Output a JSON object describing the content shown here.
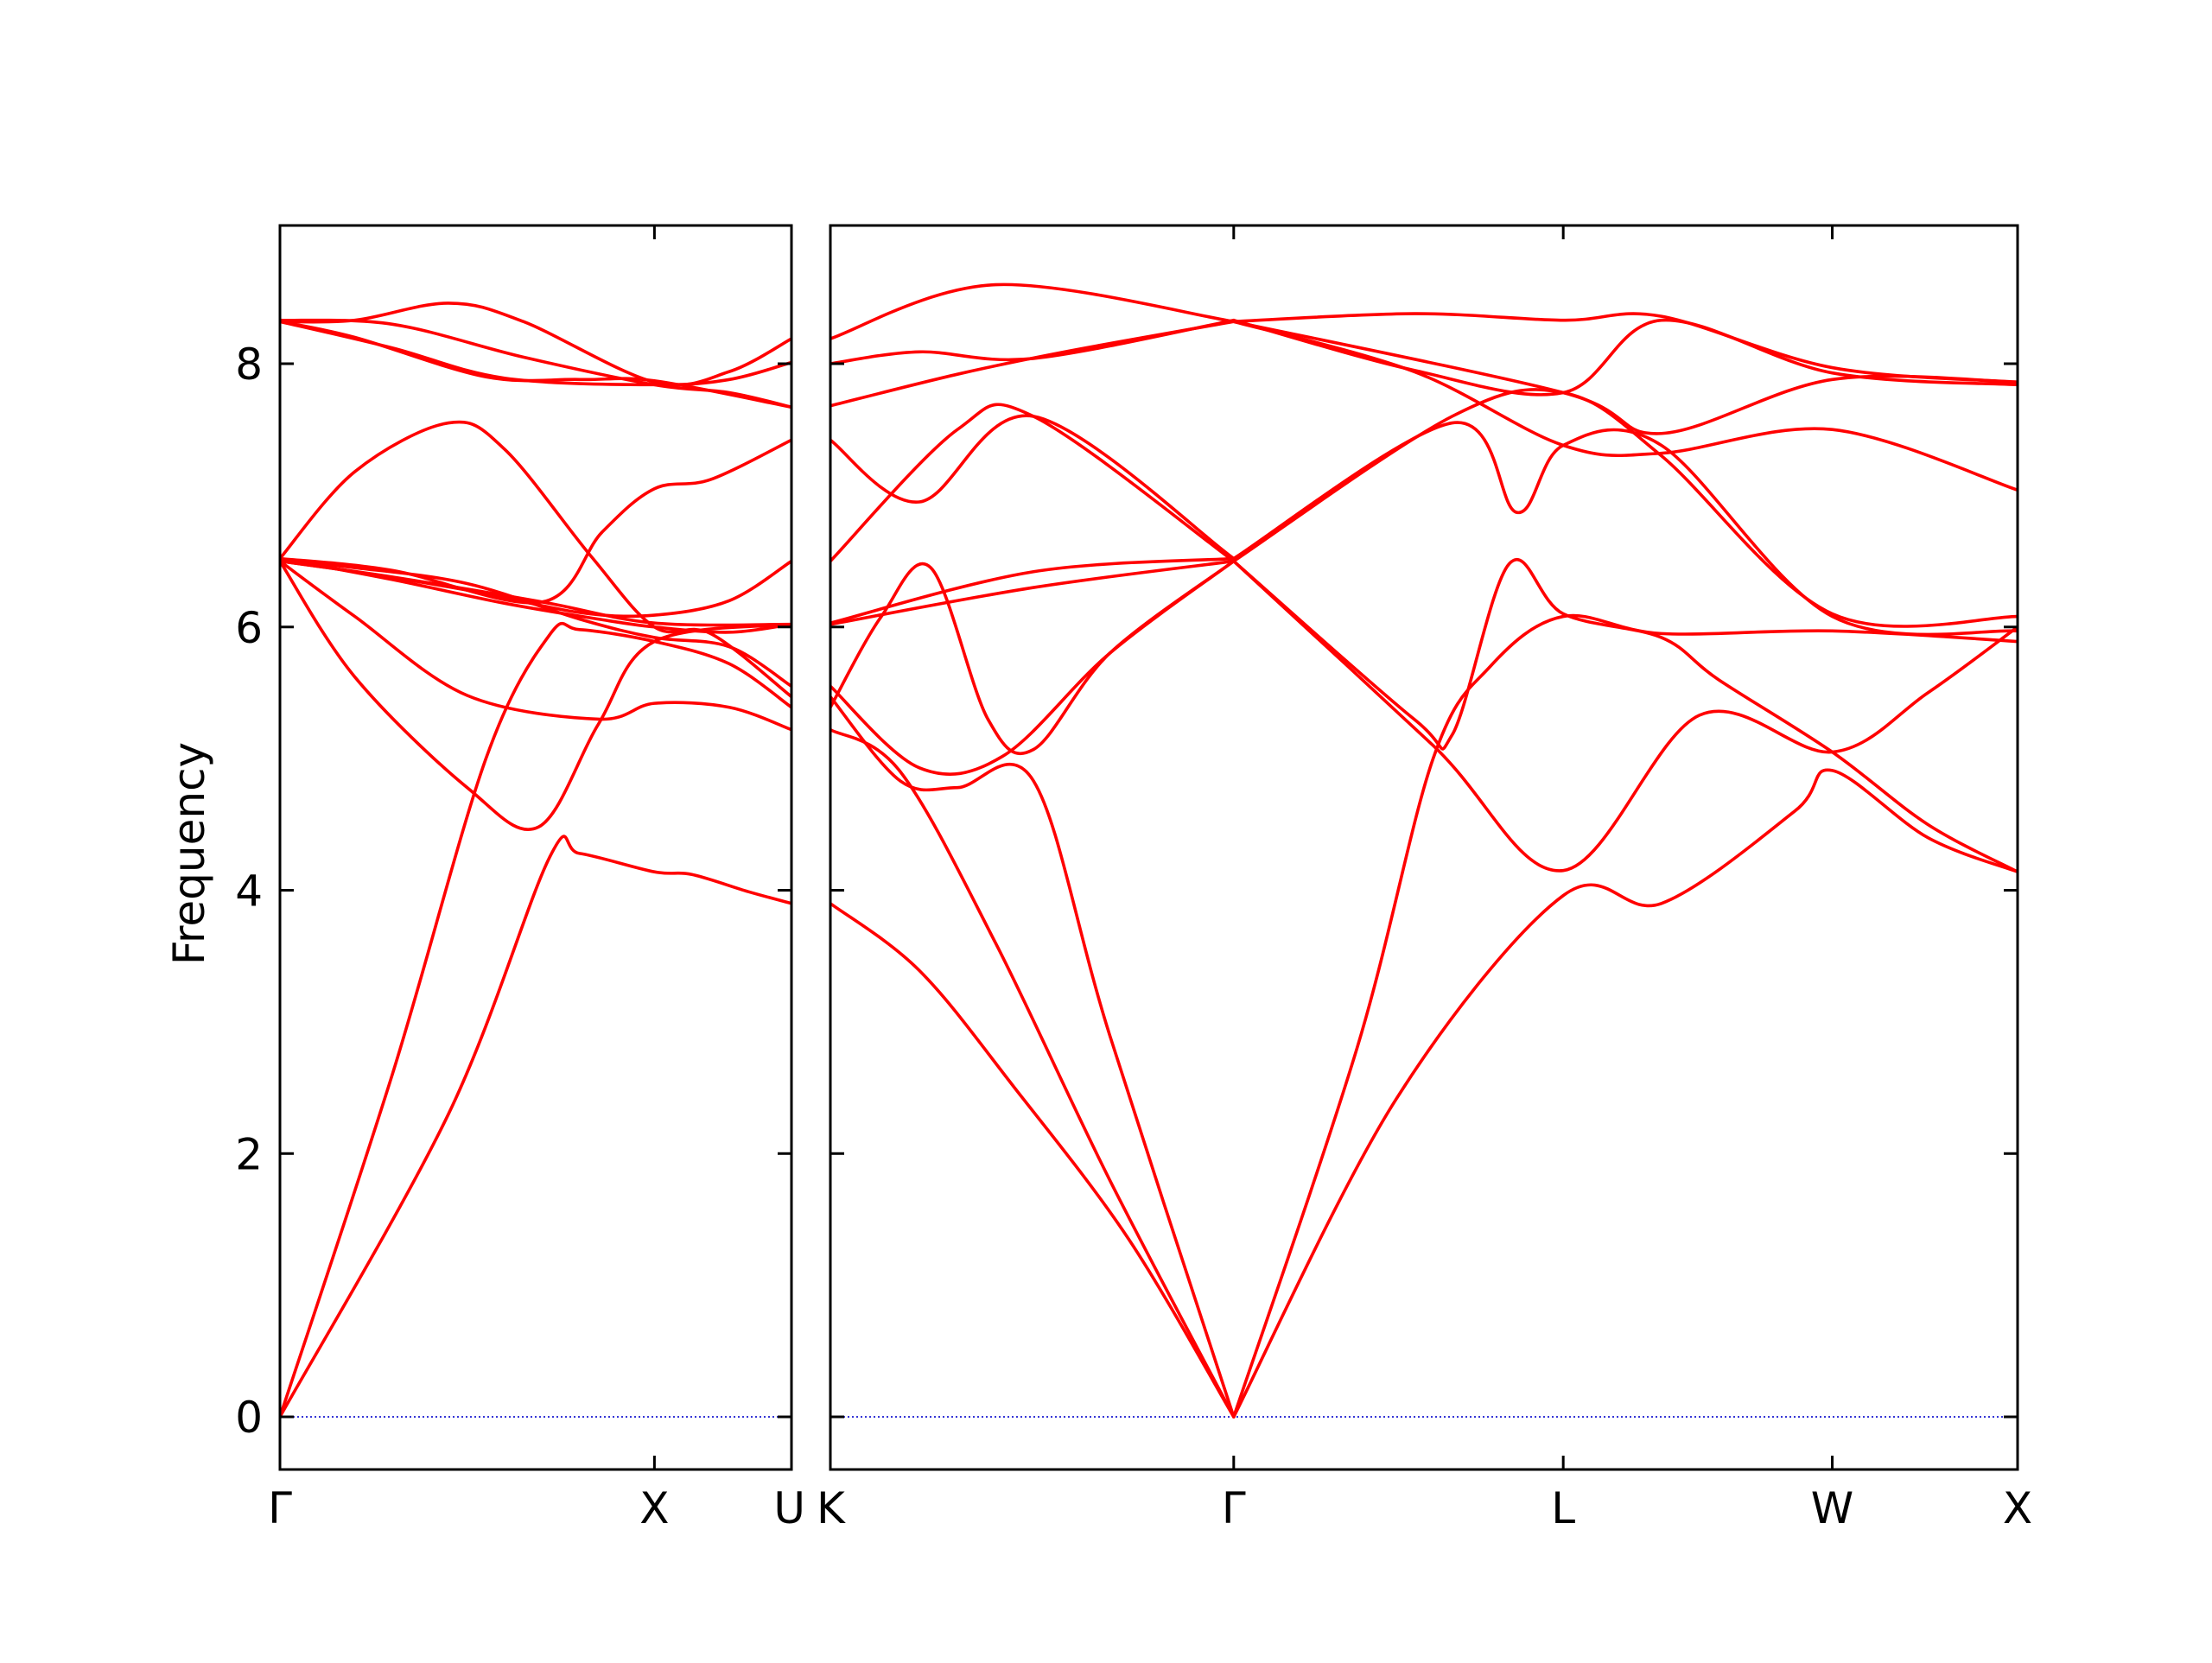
{
  "chart_data": {
    "type": "line",
    "ylabel": "Frequency",
    "ylim": [
      -0.4,
      9.05
    ],
    "yticks": [
      0,
      2,
      4,
      6,
      8
    ],
    "grid": false,
    "legend": "none",
    "colors": {
      "band": "#ff0000",
      "zero_line": "#0000cc",
      "axis": "#000000"
    },
    "panels": [
      {
        "xlim": [
          0,
          1.366
        ],
        "xticks": [
          {
            "x": 0,
            "label": "Γ"
          },
          {
            "x": 1.0,
            "label": "X"
          },
          {
            "x": 1.366,
            "label": "U"
          }
        ],
        "series": [
          {
            "values": [
              [
                0,
                0
              ],
              [
                0.45,
                2.3
              ],
              [
                0.72,
                4.25
              ],
              [
                0.8,
                4.28
              ],
              [
                1.0,
                4.14
              ],
              [
                1.1,
                4.12
              ],
              [
                1.25,
                3.99
              ],
              [
                1.366,
                3.9
              ]
            ]
          },
          {
            "values": [
              [
                0,
                0
              ],
              [
                0.3,
                2.6
              ],
              [
                0.55,
                5.0
              ],
              [
                0.72,
                5.94
              ],
              [
                0.8,
                5.98
              ],
              [
                1.0,
                5.89
              ],
              [
                1.2,
                5.72
              ],
              [
                1.366,
                5.39
              ]
            ]
          },
          {
            "values": [
              [
                0,
                6.5
              ],
              [
                0.2,
                5.62
              ],
              [
                0.5,
                4.78
              ],
              [
                0.69,
                4.48
              ],
              [
                0.85,
                5.26
              ],
              [
                1.0,
                5.89
              ],
              [
                1.366,
                6.02
              ]
            ]
          },
          {
            "values": [
              [
                0,
                6.5
              ],
              [
                0.3,
                6.38
              ],
              [
                0.7,
                6.19
              ],
              [
                1.0,
                6.03
              ],
              [
                1.366,
                6.02
              ]
            ]
          },
          {
            "values": [
              [
                0,
                6.52
              ],
              [
                0.3,
                6.43
              ],
              [
                0.7,
                6.19
              ],
              [
                0.86,
                6.72
              ],
              [
                1.0,
                7.05
              ],
              [
                1.15,
                7.12
              ],
              [
                1.366,
                7.42
              ]
            ]
          },
          {
            "values": [
              [
                0,
                6.52
              ],
              [
                0.2,
                7.18
              ],
              [
                0.45,
                7.55
              ],
              [
                0.6,
                7.35
              ],
              [
                0.83,
                6.54
              ],
              [
                1.0,
                6.0
              ],
              [
                1.15,
                5.95
              ],
              [
                1.366,
                5.47
              ]
            ]
          },
          {
            "values": [
              [
                0,
                8.32
              ],
              [
                0.2,
                8.33
              ],
              [
                0.45,
                8.46
              ],
              [
                0.65,
                8.32
              ],
              [
                1.0,
                7.86
              ],
              [
                1.2,
                7.94
              ],
              [
                1.366,
                8.19
              ]
            ]
          },
          {
            "values": [
              [
                0,
                8.32
              ],
              [
                0.2,
                8.2
              ],
              [
                0.55,
                7.9
              ],
              [
                0.8,
                7.88
              ],
              [
                1.0,
                7.87
              ],
              [
                1.366,
                7.67
              ]
            ]
          },
          {
            "values": [
              [
                0,
                6.5
              ],
              [
                0.2,
                6.42
              ],
              [
                0.5,
                6.28
              ],
              [
                0.8,
                6.11
              ],
              [
                1.0,
                6.09
              ],
              [
                1.2,
                6.2
              ],
              [
                1.366,
                6.5
              ]
            ]
          },
          {
            "values": [
              [
                0,
                6.5
              ],
              [
                0.2,
                6.45
              ],
              [
                0.5,
                6.33
              ],
              [
                0.8,
                6.06
              ],
              [
                1.0,
                5.92
              ],
              [
                1.2,
                5.85
              ],
              [
                1.366,
                5.55
              ]
            ]
          },
          {
            "values": [
              [
                0,
                6.52
              ],
              [
                0.3,
                6.36
              ],
              [
                0.6,
                6.18
              ],
              [
                0.85,
                6.06
              ],
              [
                1.0,
                6.0
              ],
              [
                1.2,
                5.96
              ],
              [
                1.366,
                6.02
              ]
            ]
          },
          {
            "values": [
              [
                0,
                8.32
              ],
              [
                0.3,
                8.12
              ],
              [
                0.6,
                7.89
              ],
              [
                1.0,
                7.84
              ],
              [
                1.2,
                7.88
              ],
              [
                1.366,
                8.01
              ]
            ]
          },
          {
            "values": [
              [
                0,
                8.33
              ],
              [
                0.3,
                8.3
              ],
              [
                0.65,
                8.05
              ],
              [
                1.0,
                7.84
              ],
              [
                1.2,
                7.78
              ],
              [
                1.366,
                7.67
              ]
            ]
          },
          {
            "values": [
              [
                0,
                6.5
              ],
              [
                0.2,
                6.08
              ],
              [
                0.5,
                5.48
              ],
              [
                0.85,
                5.3
              ],
              [
                1.0,
                5.42
              ],
              [
                1.2,
                5.39
              ],
              [
                1.366,
                5.22
              ]
            ]
          }
        ]
      },
      {
        "xlim": [
          1.366,
          4.486
        ],
        "xticks": [
          {
            "x": 1.366,
            "label": "K"
          },
          {
            "x": 2.426,
            "label": "Γ"
          },
          {
            "x": 3.292,
            "label": "L"
          },
          {
            "x": 3.999,
            "label": "W"
          },
          {
            "x": 4.486,
            "label": "X"
          }
        ],
        "series": [
          {
            "values": [
              [
                1.366,
                3.9
              ],
              [
                1.6,
                3.39
              ],
              [
                1.85,
                2.5
              ],
              [
                2.15,
                1.35
              ],
              [
                2.426,
                0
              ]
            ]
          },
          {
            "values": [
              [
                1.366,
                5.22
              ],
              [
                1.55,
                4.9
              ],
              [
                1.8,
                3.6
              ],
              [
                2.1,
                1.8
              ],
              [
                2.426,
                0
              ]
            ]
          },
          {
            "values": [
              [
                1.366,
                5.47
              ],
              [
                1.55,
                4.83
              ],
              [
                1.7,
                4.78
              ],
              [
                1.9,
                4.83
              ],
              [
                2.1,
                2.9
              ],
              [
                2.426,
                0
              ]
            ]
          },
          {
            "values": [
              [
                1.366,
                5.55
              ],
              [
                1.6,
                4.93
              ],
              [
                1.82,
                5.02
              ],
              [
                2.1,
                5.8
              ],
              [
                2.426,
                6.5
              ]
            ]
          },
          {
            "values": [
              [
                1.366,
                5.39
              ],
              [
                1.5,
                6.08
              ],
              [
                1.63,
                6.45
              ],
              [
                1.78,
                5.3
              ],
              [
                1.9,
                5.07
              ],
              [
                2.1,
                5.8
              ],
              [
                2.426,
                6.5
              ]
            ]
          },
          {
            "values": [
              [
                1.366,
                6.02
              ],
              [
                1.9,
                6.3
              ],
              [
                2.426,
                6.5
              ]
            ]
          },
          {
            "values": [
              [
                1.366,
                6.03
              ],
              [
                1.9,
                6.42
              ],
              [
                2.426,
                6.52
              ]
            ]
          },
          {
            "values": [
              [
                1.366,
                6.5
              ],
              [
                1.7,
                7.5
              ],
              [
                1.9,
                7.6
              ],
              [
                2.426,
                6.5
              ]
            ]
          },
          {
            "values": [
              [
                1.366,
                7.42
              ],
              [
                1.6,
                6.95
              ],
              [
                1.9,
                7.6
              ],
              [
                2.426,
                6.52
              ]
            ]
          },
          {
            "values": [
              [
                1.366,
                7.68
              ],
              [
                1.7,
                7.92
              ],
              [
                2.0,
                8.1
              ],
              [
                2.426,
                8.32
              ]
            ]
          },
          {
            "values": [
              [
                1.366,
                8.0
              ],
              [
                1.6,
                8.09
              ],
              [
                1.9,
                8.04
              ],
              [
                2.426,
                8.33
              ]
            ]
          },
          {
            "values": [
              [
                1.366,
                8.19
              ],
              [
                1.8,
                8.6
              ],
              [
                2.426,
                8.32
              ]
            ]
          },
          {
            "values": [
              [
                2.426,
                0
              ],
              [
                2.75,
                2.8
              ],
              [
                2.95,
                5.0
              ],
              [
                3.1,
                5.7
              ],
              [
                3.292,
                6.08
              ],
              [
                3.55,
                5.95
              ],
              [
                3.999,
                5.97
              ],
              [
                4.486,
                5.89
              ]
            ]
          },
          {
            "values": [
              [
                2.426,
                0
              ],
              [
                2.85,
                2.4
              ],
              [
                3.292,
                3.96
              ],
              [
                3.55,
                3.9
              ],
              [
                3.9,
                4.6
              ],
              [
                3.999,
                4.91
              ],
              [
                4.25,
                4.4
              ],
              [
                4.486,
                4.14
              ]
            ]
          },
          {
            "values": [
              [
                2.426,
                6.5
              ],
              [
                2.95,
                5.1
              ],
              [
                3.292,
                4.15
              ],
              [
                3.65,
                5.33
              ],
              [
                3.999,
                5.05
              ],
              [
                4.25,
                5.5
              ],
              [
                4.486,
                6.0
              ]
            ]
          },
          {
            "values": [
              [
                2.426,
                6.5
              ],
              [
                2.9,
                5.3
              ],
              [
                3.0,
                5.18
              ],
              [
                3.15,
                6.48
              ],
              [
                3.292,
                6.1
              ],
              [
                3.55,
                5.92
              ],
              [
                3.7,
                5.6
              ],
              [
                3.999,
                5.05
              ],
              [
                4.25,
                4.5
              ],
              [
                4.486,
                4.14
              ]
            ]
          },
          {
            "values": [
              [
                2.426,
                6.5
              ],
              [
                3.0,
                7.6
              ],
              [
                3.292,
                7.78
              ],
              [
                3.55,
                7.3
              ],
              [
                3.999,
                6.1
              ],
              [
                4.486,
                6.08
              ]
            ]
          },
          {
            "values": [
              [
                2.426,
                6.52
              ],
              [
                3.0,
                7.55
              ],
              [
                3.17,
                6.87
              ],
              [
                3.292,
                7.38
              ],
              [
                3.55,
                7.38
              ],
              [
                3.999,
                6.08
              ],
              [
                4.486,
                5.97
              ]
            ]
          },
          {
            "values": [
              [
                2.426,
                8.32
              ],
              [
                2.9,
                7.94
              ],
              [
                3.292,
                7.38
              ],
              [
                3.55,
                7.32
              ],
              [
                3.999,
                7.5
              ],
              [
                4.486,
                7.04
              ]
            ]
          },
          {
            "values": [
              [
                2.426,
                8.32
              ],
              [
                2.9,
                8.38
              ],
              [
                3.292,
                8.33
              ],
              [
                3.55,
                8.36
              ],
              [
                3.999,
                7.97
              ],
              [
                4.486,
                7.86
              ]
            ]
          },
          {
            "values": [
              [
                2.426,
                8.33
              ],
              [
                2.9,
                7.95
              ],
              [
                3.292,
                7.78
              ],
              [
                3.55,
                8.33
              ],
              [
                3.999,
                7.93
              ],
              [
                4.486,
                7.84
              ]
            ]
          },
          {
            "values": [
              [
                2.426,
                8.32
              ],
              [
                3.292,
                7.78
              ],
              [
                3.55,
                7.47
              ],
              [
                3.999,
                7.88
              ],
              [
                4.486,
                7.86
              ]
            ]
          }
        ]
      }
    ]
  }
}
